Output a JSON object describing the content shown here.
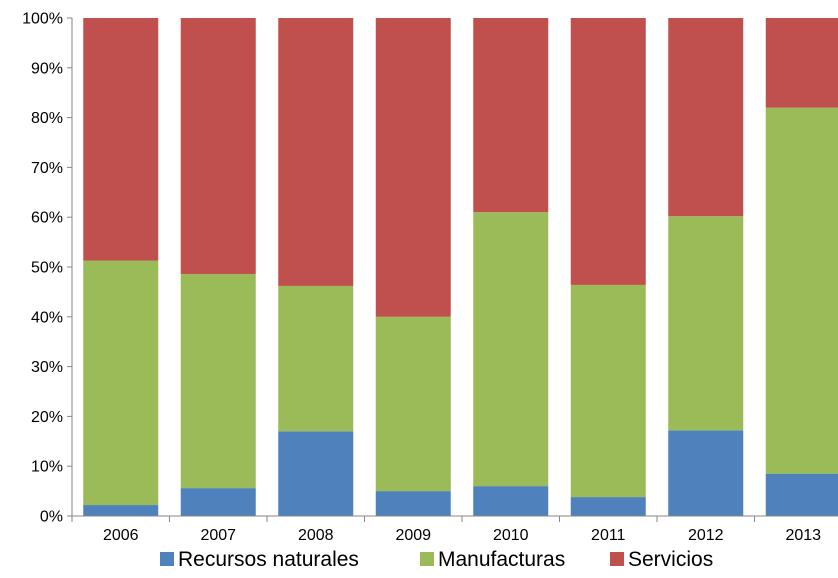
{
  "chart_data": {
    "type": "bar",
    "stacked": true,
    "percent": true,
    "categories": [
      "2006",
      "2007",
      "2008",
      "2009",
      "2010",
      "2011",
      "2012",
      "2013"
    ],
    "series": [
      {
        "name": "Recursos naturales",
        "color": "#4f81bd",
        "values": [
          2.2,
          5.6,
          17,
          5,
          6,
          3.8,
          17.2,
          8.5
        ]
      },
      {
        "name": "Manufacturas",
        "color": "#9bbb59",
        "values": [
          49.1,
          43,
          29.2,
          35,
          55,
          42.6,
          43,
          73.5
        ]
      },
      {
        "name": "Servicios",
        "color": "#c0504d",
        "values": [
          48.7,
          51.4,
          53.8,
          60,
          39,
          53.6,
          39.8,
          18
        ]
      }
    ],
    "yticks": [
      "0%",
      "10%",
      "20%",
      "30%",
      "40%",
      "50%",
      "60%",
      "70%",
      "80%",
      "90%",
      "100%"
    ],
    "ylim": [
      0,
      100
    ],
    "title": "",
    "xlabel": "",
    "ylabel": "",
    "legend_position": "bottom",
    "grid": false
  }
}
